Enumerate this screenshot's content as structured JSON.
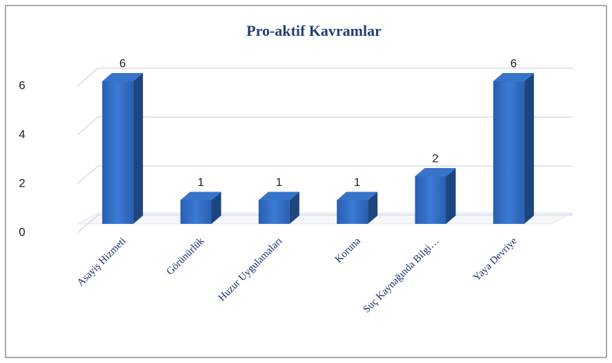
{
  "chart_data": {
    "type": "bar",
    "title": "Pro-aktif Kavramlar",
    "categories": [
      "Asayiş Hizmeti",
      "Görünürlük",
      "Huzur Uygulamaları",
      "Koruna",
      "Suç Kaynağında Bilgi…",
      "Yaya Devriye"
    ],
    "values": [
      6,
      1,
      1,
      1,
      2,
      6
    ],
    "color": "#2f6cc4",
    "ylim": [
      0,
      6
    ],
    "yticks": [
      0,
      2,
      4,
      6
    ],
    "grid": true
  }
}
